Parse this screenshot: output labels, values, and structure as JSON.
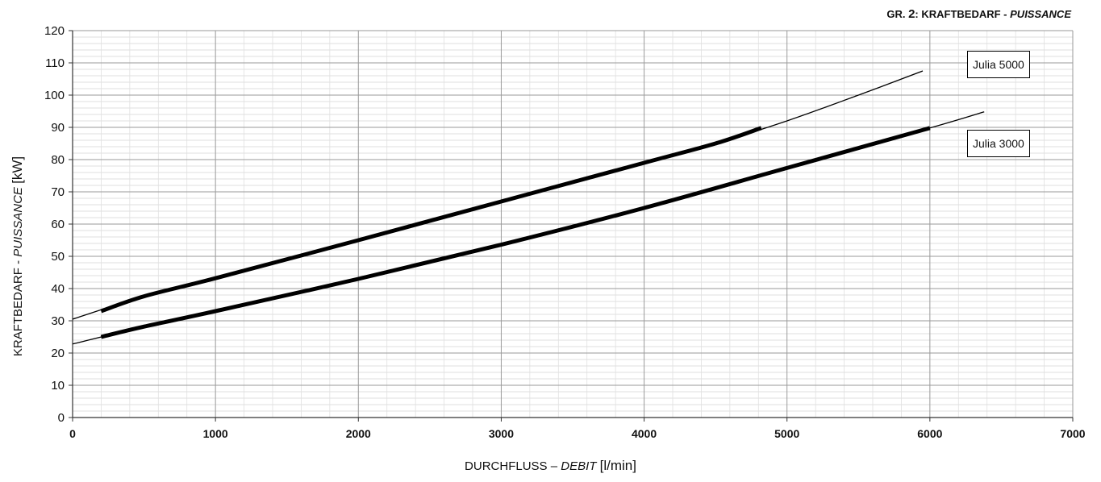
{
  "title": {
    "prefix": "GR. ",
    "num": "2",
    "main": ": KRAFTBEDARF - ",
    "italic": "PUISSANCE"
  },
  "xlabel": {
    "main": "DURCHFLUSS – ",
    "italic": "DEBIT",
    "unit": "[l/min]"
  },
  "ylabel": {
    "main": "KRAFTBEDARF - ",
    "italic": "PUISSANCE",
    "unit": "[kW]"
  },
  "chart_data": {
    "type": "line",
    "xlim": [
      0,
      7000
    ],
    "ylim": [
      0,
      120
    ],
    "x_ticks": [
      0,
      1000,
      2000,
      3000,
      4000,
      5000,
      6000,
      7000
    ],
    "y_ticks": [
      0,
      10,
      20,
      30,
      40,
      50,
      60,
      70,
      80,
      90,
      100,
      110,
      120
    ],
    "grid": true,
    "series": [
      {
        "name": "Julia 5000",
        "thin": [
          [
            0,
            30.5
          ],
          [
            500,
            37.6
          ],
          [
            1000,
            43.2
          ],
          [
            2000,
            55
          ],
          [
            3000,
            67
          ],
          [
            4000,
            79
          ],
          [
            4500,
            85
          ],
          [
            5000,
            92
          ],
          [
            5500,
            100
          ],
          [
            5950,
            107.5
          ]
        ],
        "bold": [
          [
            200,
            33
          ],
          [
            500,
            37.6
          ],
          [
            1000,
            43.2
          ],
          [
            2000,
            55
          ],
          [
            3000,
            67
          ],
          [
            4000,
            79
          ],
          [
            4500,
            85
          ],
          [
            4820,
            89.8
          ]
        ]
      },
      {
        "name": "Julia 3000",
        "thin": [
          [
            0,
            22.8
          ],
          [
            500,
            28.2
          ],
          [
            1000,
            33
          ],
          [
            2000,
            43
          ],
          [
            3000,
            53.6
          ],
          [
            4000,
            65
          ],
          [
            5000,
            77.4
          ],
          [
            6000,
            89.8
          ],
          [
            6380,
            94.8
          ]
        ],
        "bold": [
          [
            200,
            25
          ],
          [
            500,
            28.2
          ],
          [
            1000,
            33
          ],
          [
            2000,
            43
          ],
          [
            3000,
            53.6
          ],
          [
            4000,
            65
          ],
          [
            5000,
            77.4
          ],
          [
            6000,
            89.8
          ]
        ]
      }
    ]
  }
}
